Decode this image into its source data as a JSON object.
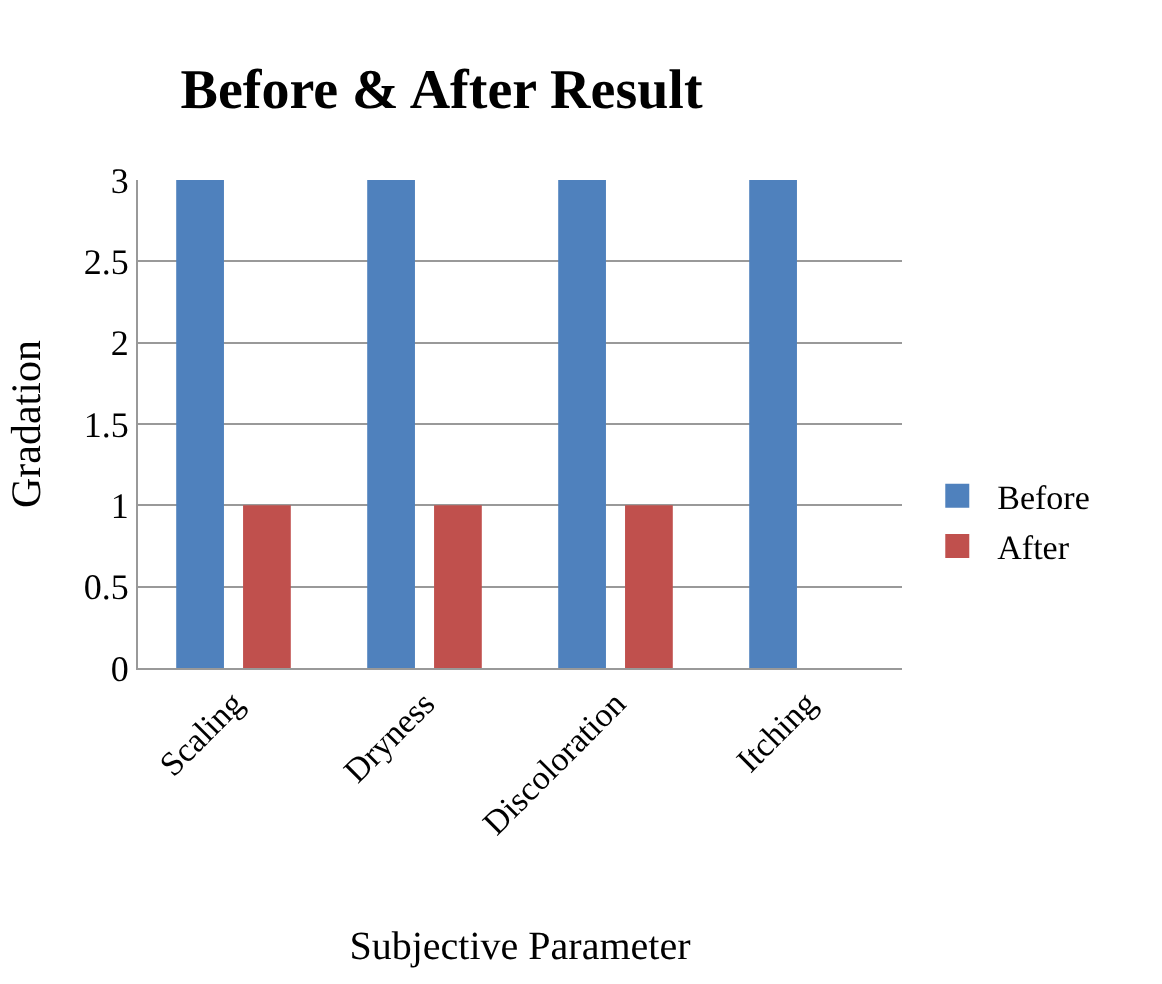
{
  "chart_data": {
    "type": "bar",
    "title": "Before & After Result",
    "xlabel": "Subjective Parameter",
    "ylabel": "Gradation",
    "categories": [
      "Scaling",
      "Dryness",
      "Discoloration",
      "Itching"
    ],
    "series": [
      {
        "name": "Before",
        "color": "#4f81bd",
        "values": [
          3,
          3,
          3,
          3
        ]
      },
      {
        "name": "After",
        "color": "#c0504d",
        "values": [
          1,
          1,
          1,
          0
        ]
      }
    ],
    "ylim": [
      0,
      3
    ],
    "yticks": [
      0,
      0.5,
      1,
      1.5,
      2,
      2.5,
      3
    ],
    "grid": "y",
    "legend": "right"
  }
}
